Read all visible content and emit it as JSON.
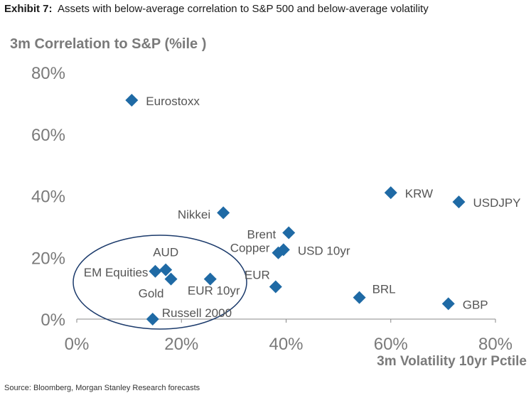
{
  "header": {
    "exhibit": "Exhibit 7:",
    "title": "Assets with below-average correlation to S&P 500 and below-average volatility"
  },
  "source": "Source: Bloomberg, Morgan Stanley Research forecasts",
  "chart_data": {
    "type": "scatter",
    "ylabel": "3m Correlation to S&P (%ile )",
    "xlabel": "3m Volatility 10yr Pctile",
    "xlim": [
      0,
      80
    ],
    "ylim": [
      0,
      80
    ],
    "x_ticks": [
      "0%",
      "20%",
      "40%",
      "60%",
      "80%"
    ],
    "y_ticks": [
      "0%",
      "20%",
      "40%",
      "60%",
      "80%"
    ],
    "grid": false,
    "marker_color": "#1f6aa5",
    "circle_color": "#1b3a6b",
    "points": [
      {
        "label": "Eurostoxx",
        "x": 10.5,
        "y": 71
      },
      {
        "label": "KRW",
        "x": 60,
        "y": 41
      },
      {
        "label": "USDJPY",
        "x": 73,
        "y": 38
      },
      {
        "label": "Nikkei",
        "x": 28,
        "y": 34.5
      },
      {
        "label": "Brent",
        "x": 40.5,
        "y": 28
      },
      {
        "label": "Copper",
        "x": 38.5,
        "y": 21.5
      },
      {
        "label": "USD 10yr",
        "x": 39.5,
        "y": 22.5
      },
      {
        "label": "AUD",
        "x": 17,
        "y": 16
      },
      {
        "label": "EM Equities",
        "x": 15,
        "y": 15.5
      },
      {
        "label": "Gold",
        "x": 18,
        "y": 13
      },
      {
        "label": "EUR 10yr",
        "x": 25.5,
        "y": 13
      },
      {
        "label": "EUR",
        "x": 38,
        "y": 10.5
      },
      {
        "label": "BRL",
        "x": 54,
        "y": 7
      },
      {
        "label": "GBP",
        "x": 71,
        "y": 5
      },
      {
        "label": "Russell 2000",
        "x": 14.5,
        "y": 0
      }
    ]
  }
}
